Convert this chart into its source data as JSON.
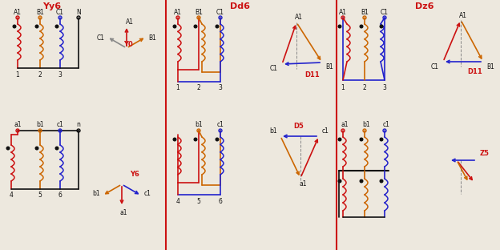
{
  "cr": "#cc1111",
  "co": "#cc6600",
  "cb": "#2222cc",
  "ck": "#111111",
  "cg": "#888888",
  "bg": "#ede8de",
  "div_color": "#cc1111",
  "Yy6": "Yy6",
  "Dd6": "Dd6",
  "Dz6": "Dz6",
  "Y0": "Y0",
  "Y6": "Y6",
  "D11_1": "D11",
  "D5": "D5",
  "D11_2": "D11",
  "Z5": "Z5"
}
